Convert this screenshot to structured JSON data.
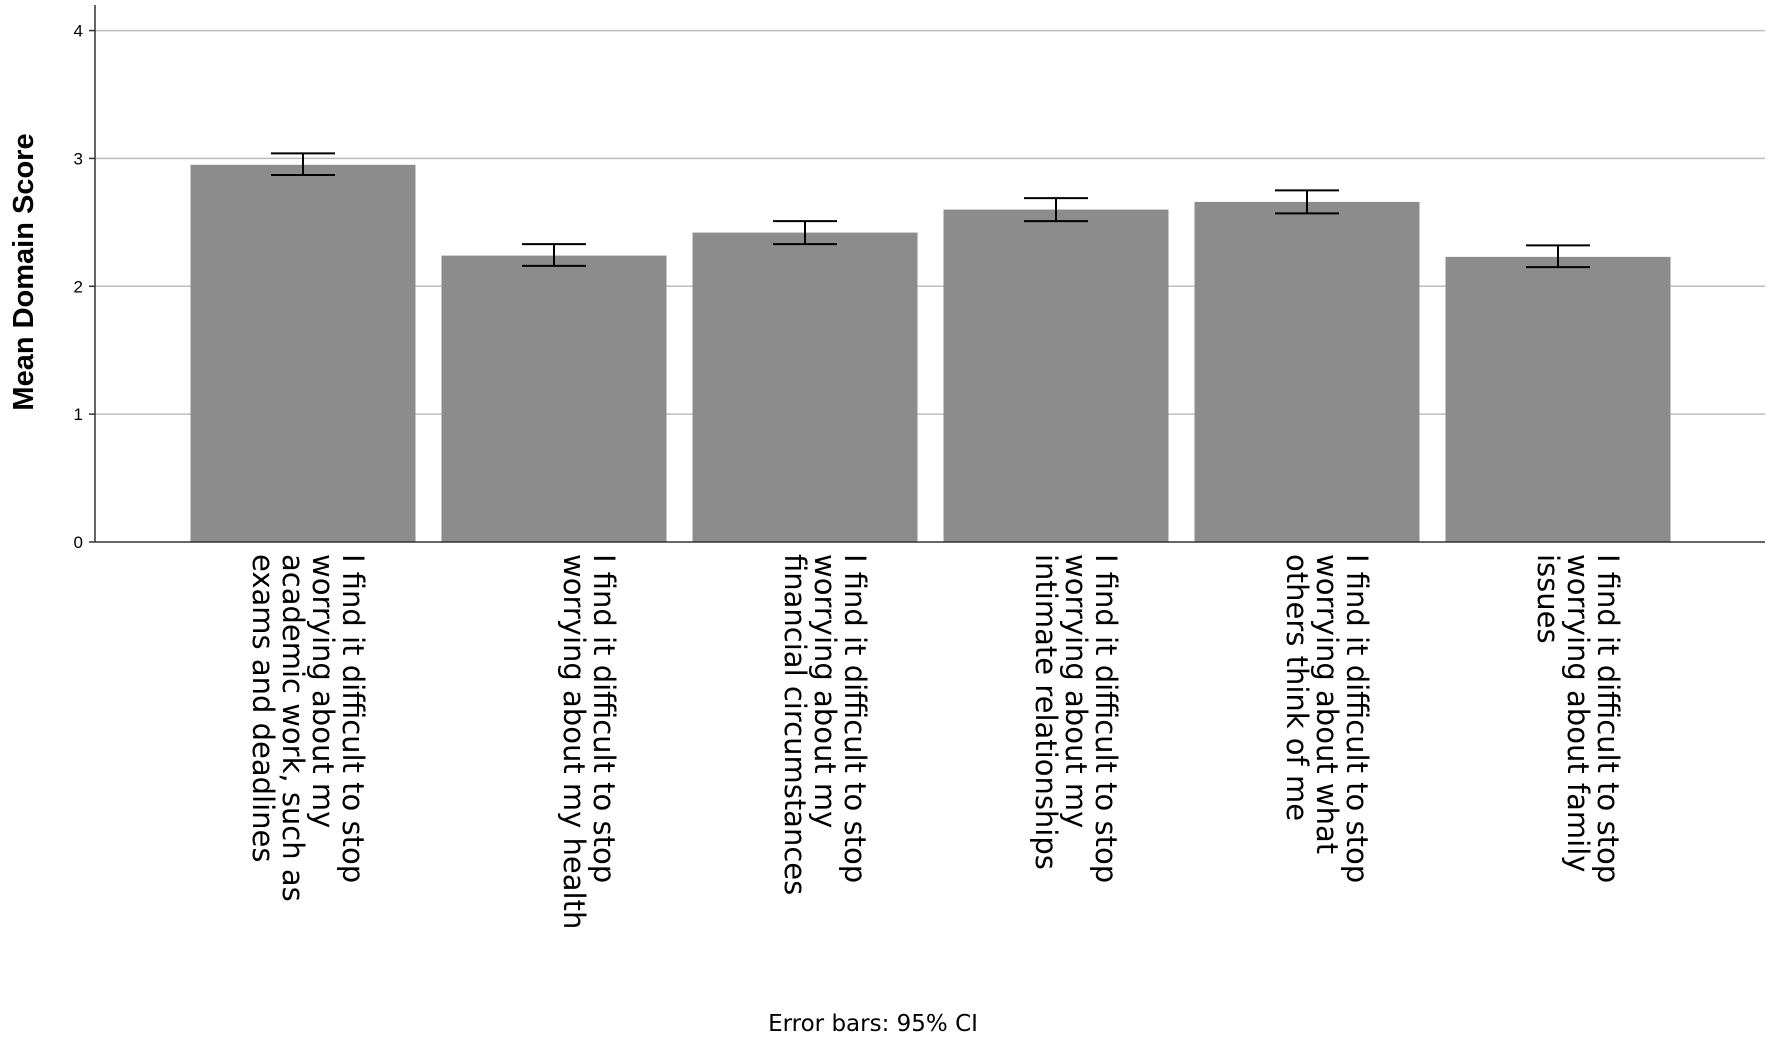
{
  "chart_data": {
    "type": "bar",
    "ylabel": "Mean Domain Score",
    "xlabel": "",
    "ylim": [
      0,
      4.2
    ],
    "yticks": [
      "0",
      "1",
      "2",
      "3",
      "4"
    ],
    "grid": "horizontal",
    "bar_color": "#8c8c8c",
    "grid_color": "#bdbdbd",
    "categories": [
      "I find it difficult to stop worrying about my academic work, such as exams and deadlines",
      "I find it difficult to stop worrying about my health",
      "I find it difficult to stop worrying about my financial circumstances",
      "I find it difficult to stop worrying about my intimate relationships",
      "I find it difficult to stop worrying about what others think of me",
      "I find it difficult to stop worrying about family issues"
    ],
    "category_label_lines": [
      [
        "I find it difficult to stop",
        "worrying about my",
        "academic work, such as",
        "exams and deadlines"
      ],
      [
        "I find it difficult to stop",
        "worrying about my health"
      ],
      [
        "I find it difficult to stop",
        "worrying about my",
        "financial circumstances"
      ],
      [
        "I find it difficult to stop",
        "worrying about my",
        "intimate relationships"
      ],
      [
        "I find it difficult to stop",
        "worrying about what",
        "others think of me"
      ],
      [
        "I find it difficult to stop",
        "worrying about family",
        "issues"
      ]
    ],
    "values": [
      2.95,
      2.24,
      2.42,
      2.6,
      2.66,
      2.23
    ],
    "error_bars": {
      "type": "95% CI",
      "lower": [
        2.87,
        2.16,
        2.33,
        2.51,
        2.57,
        2.15
      ],
      "upper": [
        3.04,
        2.33,
        2.51,
        2.69,
        2.75,
        2.32
      ]
    },
    "footnote": "Error bars: 95% CI"
  }
}
